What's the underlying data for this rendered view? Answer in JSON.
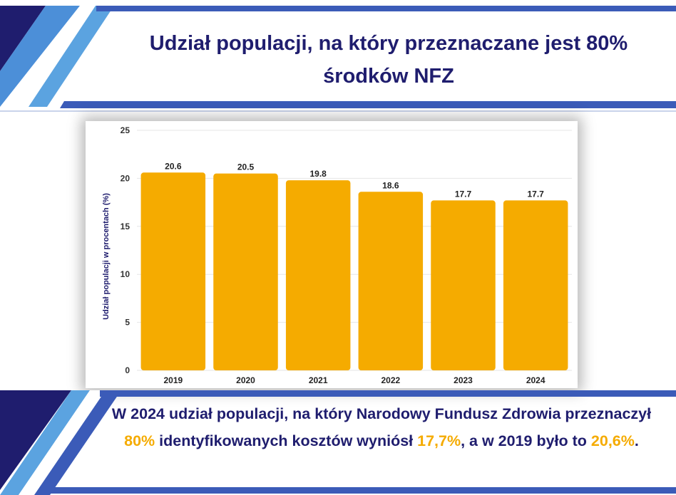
{
  "title": "Udział populacji, na który przeznaczane jest 80% środków NFZ",
  "summary": {
    "part1": "W 2024 udział populacji, na który Narodowy Fundusz Zdrowia przeznaczył ",
    "hl1": "80%",
    "part2": " identyfikowanych kosztów wyniósł ",
    "hl2": "17,7%",
    "part3": ", a w 2019 było to ",
    "hl3": "20,6%",
    "part4": "."
  },
  "colors": {
    "navy": "#1f1d6e",
    "blue": "#3b5bb8",
    "light_blue": "#5ba3e0",
    "bar": "#f5ab00",
    "highlight": "#f5ab00"
  },
  "chart_data": {
    "type": "bar",
    "title": "",
    "xlabel": "",
    "ylabel": "Udział populacji w procentach (%)",
    "categories": [
      "2019",
      "2020",
      "2021",
      "2022",
      "2023",
      "2024"
    ],
    "values": [
      20.6,
      20.5,
      19.8,
      18.6,
      17.7,
      17.7
    ],
    "data_labels": [
      "20.6",
      "20.5",
      "19.8",
      "18.6",
      "17.7",
      "17.7"
    ],
    "ylim": [
      0,
      25
    ],
    "yticks": [
      0,
      5,
      10,
      15,
      20,
      25
    ],
    "grid": true,
    "legend": "none"
  }
}
